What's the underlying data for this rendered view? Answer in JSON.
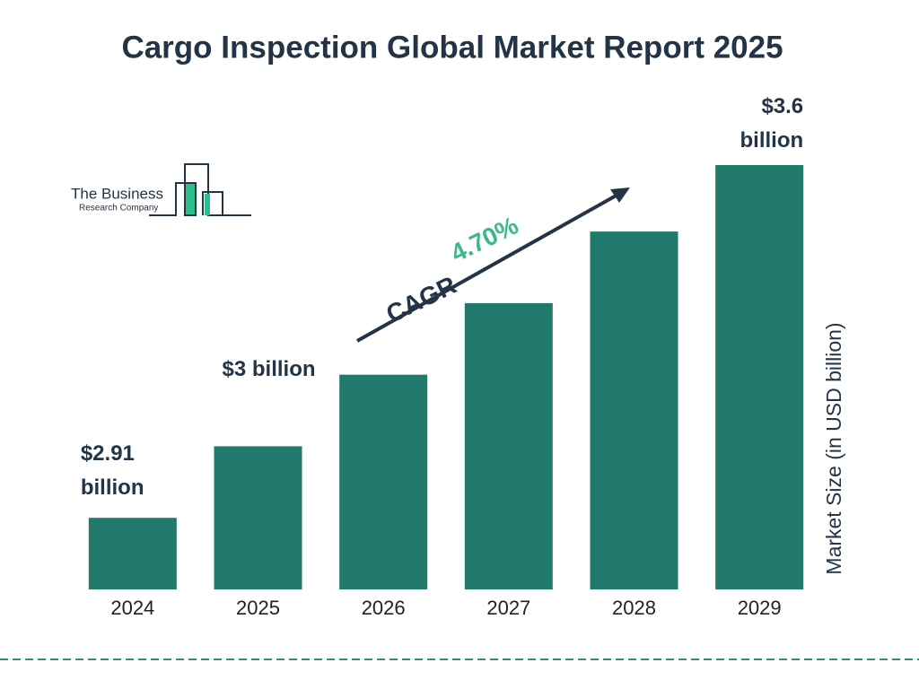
{
  "chart_data": {
    "type": "bar",
    "title": "Cargo Inspection Global Market Report 2025",
    "categories": [
      "2024",
      "2025",
      "2026",
      "2027",
      "2028",
      "2029"
    ],
    "values": [
      2.91,
      3.05,
      3.19,
      3.33,
      3.47,
      3.6
    ],
    "value_labels": [
      "$2.91 billion",
      "$3 billion",
      null,
      null,
      null,
      "$3.6 billion"
    ],
    "color": "#217a6b",
    "ylim": [
      2.77,
      3.65
    ],
    "ylabel": "Market Size (in USD billion)",
    "annotations": {
      "cagr_label": "CAGR",
      "cagr_value": "4.70%"
    },
    "logo": {
      "line1": "The Business",
      "line2": "Research Company"
    }
  }
}
